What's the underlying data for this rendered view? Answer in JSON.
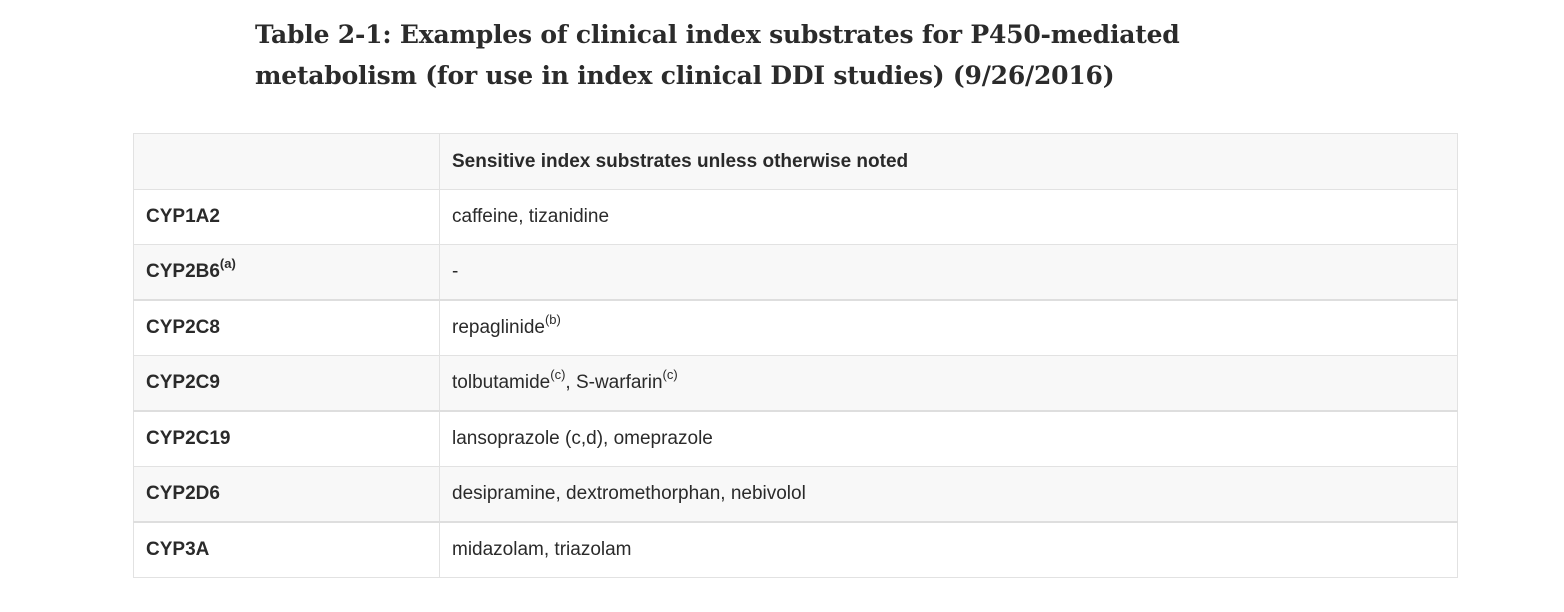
{
  "title": "Table 2-1: Examples of clinical index substrates for P450-mediated metabolism (for use in index clinical DDI studies) (9/26/2016)",
  "table": {
    "headers": [
      "",
      "Sensitive index substrates unless otherwise noted"
    ],
    "rows": [
      {
        "enzyme": "CYP1A2",
        "enzyme_sup": "",
        "substrates": [
          {
            "text": "caffeine, tizanidine",
            "sup": ""
          }
        ]
      },
      {
        "enzyme": "CYP2B6",
        "enzyme_sup": "(a)",
        "substrates": [
          {
            "text": "-",
            "sup": ""
          }
        ]
      },
      {
        "enzyme": "CYP2C8",
        "enzyme_sup": "",
        "substrates": [
          {
            "text": "repaglinide",
            "sup": "(b)"
          }
        ]
      },
      {
        "enzyme": "CYP2C9",
        "enzyme_sup": "",
        "substrates": [
          {
            "text": "tolbutamide",
            "sup": "(c)"
          },
          {
            "text": ", S-warfarin",
            "sup": "(c)"
          }
        ]
      },
      {
        "enzyme": "CYP2C19",
        "enzyme_sup": "",
        "substrates": [
          {
            "text": "lansoprazole (c,d), omeprazole",
            "sup": ""
          }
        ]
      },
      {
        "enzyme": "CYP2D6",
        "enzyme_sup": "",
        "substrates": [
          {
            "text": "desipramine, dextromethorphan, nebivolol",
            "sup": ""
          }
        ]
      },
      {
        "enzyme": "CYP3A",
        "enzyme_sup": "",
        "substrates": [
          {
            "text": "midazolam, triazolam",
            "sup": ""
          }
        ]
      }
    ]
  },
  "colors": {
    "header_bg": "#f8f8f8",
    "stripe_bg": "#f8f8f8",
    "border": "#e2e2e2",
    "text": "#2a2a2a"
  }
}
